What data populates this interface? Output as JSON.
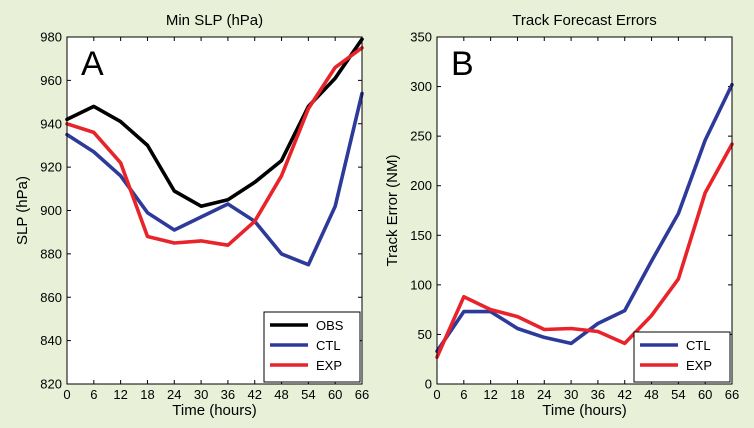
{
  "chart_data": [
    {
      "type": "line",
      "panel_letter": "A",
      "title": "Min SLP (hPa)",
      "xlabel": "Time (hours)",
      "ylabel": "SLP (hPa)",
      "xlim": [
        0,
        66
      ],
      "ylim": [
        820,
        980
      ],
      "xticks": [
        0,
        6,
        12,
        18,
        24,
        30,
        36,
        42,
        48,
        54,
        60,
        66
      ],
      "yticks": [
        820,
        840,
        860,
        880,
        900,
        920,
        940,
        960,
        980
      ],
      "legend_position": "lower-right",
      "series": [
        {
          "name": "OBS",
          "color": "#000000",
          "x": [
            0,
            6,
            12,
            18,
            24,
            30,
            36,
            42,
            48,
            54,
            60,
            66
          ],
          "y": [
            942,
            948,
            941,
            930,
            909,
            902,
            905,
            913,
            923,
            948,
            961,
            979
          ]
        },
        {
          "name": "CTL",
          "color": "#2e3a9a",
          "x": [
            0,
            6,
            12,
            18,
            24,
            30,
            36,
            42,
            48,
            54,
            60,
            66
          ],
          "y": [
            935,
            927,
            916,
            899,
            891,
            897,
            903,
            895,
            880,
            875,
            902,
            954
          ]
        },
        {
          "name": "EXP",
          "color": "#e8232a",
          "x": [
            0,
            6,
            12,
            18,
            24,
            30,
            36,
            42,
            48,
            54,
            60,
            66
          ],
          "y": [
            940,
            936,
            922,
            888,
            885,
            886,
            884,
            895,
            916,
            947,
            966,
            975
          ]
        }
      ]
    },
    {
      "type": "line",
      "panel_letter": "B",
      "title": "Track Forecast Errors",
      "xlabel": "Time (hours)",
      "ylabel": "Track Error (NM)",
      "xlim": [
        0,
        66
      ],
      "ylim": [
        0,
        350
      ],
      "xticks": [
        0,
        6,
        12,
        18,
        24,
        30,
        36,
        42,
        48,
        54,
        60,
        66
      ],
      "yticks": [
        0,
        50,
        100,
        150,
        200,
        250,
        300,
        350
      ],
      "legend_position": "lower-right",
      "series": [
        {
          "name": "CTL",
          "color": "#2e3a9a",
          "x": [
            0,
            6,
            12,
            18,
            24,
            30,
            36,
            42,
            48,
            54,
            60,
            66
          ],
          "y": [
            33,
            73,
            73,
            56,
            47,
            41,
            61,
            74,
            124,
            172,
            246,
            302
          ]
        },
        {
          "name": "EXP",
          "color": "#e8232a",
          "x": [
            0,
            6,
            12,
            18,
            24,
            30,
            36,
            42,
            48,
            54,
            60,
            66
          ],
          "y": [
            27,
            88,
            75,
            68,
            55,
            56,
            53,
            41,
            69,
            106,
            193,
            242
          ]
        }
      ]
    }
  ]
}
